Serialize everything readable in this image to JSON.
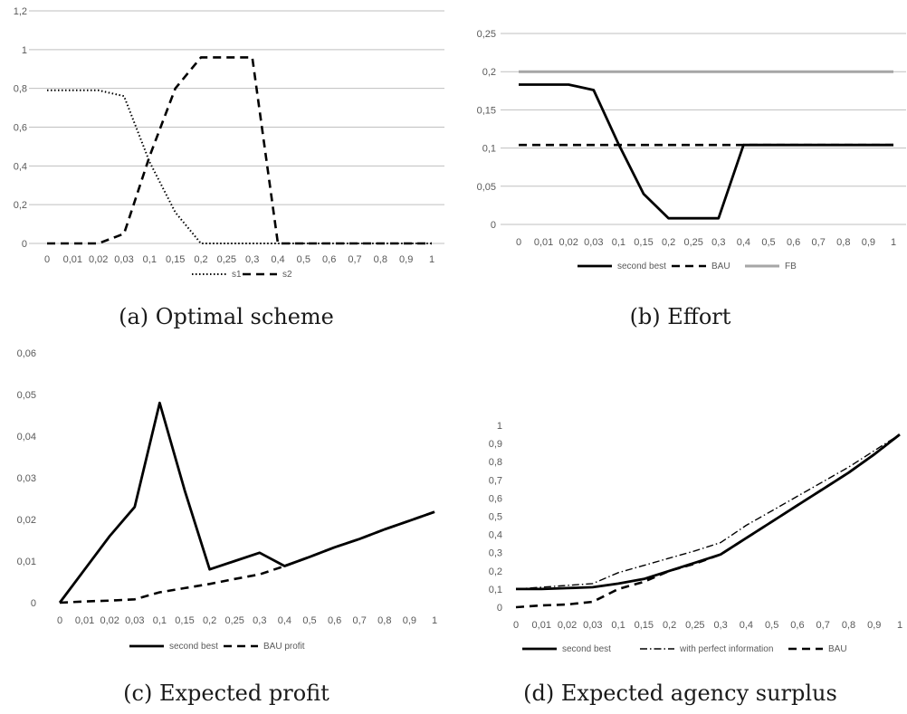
{
  "captions": {
    "a": "(a) Optimal scheme",
    "b": "(b) Effort",
    "c": "(c) Expected profit",
    "d": "(d) Expected agency surplus"
  },
  "chart_data": [
    {
      "id": "a",
      "type": "line",
      "title": "",
      "xlabel": "",
      "ylabel": "",
      "categories": [
        "0",
        "0,01",
        "0,02",
        "0,03",
        "0,1",
        "0,15",
        "0,2",
        "0,25",
        "0,3",
        "0,4",
        "0,5",
        "0,6",
        "0,7",
        "0,8",
        "0,9",
        "1"
      ],
      "yticks": [
        "0",
        "0,2",
        "0,4",
        "0,6",
        "0,8",
        "1",
        "1,2"
      ],
      "ylim": [
        0,
        1.2
      ],
      "grid": true,
      "legend": "bottom",
      "series": [
        {
          "name": "s1",
          "style": "dotted",
          "color": "#000000",
          "values": [
            0.79,
            0.79,
            0.79,
            0.76,
            0.42,
            0.16,
            0,
            0,
            0,
            0,
            0,
            0,
            0,
            0,
            0,
            0
          ]
        },
        {
          "name": "s2",
          "style": "dashed",
          "color": "#000000",
          "values": [
            0,
            0,
            0,
            0.05,
            0.45,
            0.8,
            0.96,
            0.96,
            0.96,
            0,
            0,
            0,
            0,
            0,
            0,
            0
          ]
        }
      ]
    },
    {
      "id": "b",
      "type": "line",
      "title": "",
      "xlabel": "",
      "ylabel": "",
      "categories": [
        "0",
        "0,01",
        "0,02",
        "0,03",
        "0,1",
        "0,15",
        "0,2",
        "0,25",
        "0,3",
        "0,4",
        "0,5",
        "0,6",
        "0,7",
        "0,8",
        "0,9",
        "1"
      ],
      "yticks": [
        "0",
        "0,05",
        "0,1",
        "0,15",
        "0,2",
        "0,25"
      ],
      "ylim": [
        0,
        0.25
      ],
      "grid": true,
      "legend": "bottom",
      "series": [
        {
          "name": "second best",
          "style": "solid",
          "color": "#000000",
          "values": [
            0.183,
            0.183,
            0.183,
            0.176,
            0.105,
            0.04,
            0.008,
            0.008,
            0.008,
            0.104,
            0.104,
            0.104,
            0.104,
            0.104,
            0.104,
            0.104
          ]
        },
        {
          "name": "BAU",
          "style": "dashed",
          "color": "#000000",
          "values": [
            0.104,
            0.104,
            0.104,
            0.104,
            0.104,
            0.104,
            0.104,
            0.104,
            0.104,
            0.104,
            0.104,
            0.104,
            0.104,
            0.104,
            0.104,
            0.104
          ]
        },
        {
          "name": "FB",
          "style": "solid",
          "color": "#a6a6a6",
          "values": [
            0.2,
            0.2,
            0.2,
            0.2,
            0.2,
            0.2,
            0.2,
            0.2,
            0.2,
            0.2,
            0.2,
            0.2,
            0.2,
            0.2,
            0.2,
            0.2
          ]
        }
      ]
    },
    {
      "id": "c",
      "type": "line",
      "title": "",
      "xlabel": "",
      "ylabel": "",
      "categories": [
        "0",
        "0,01",
        "0,02",
        "0,03",
        "0,1",
        "0,15",
        "0,2",
        "0,25",
        "0,3",
        "0,4",
        "0,5",
        "0,6",
        "0,7",
        "0,8",
        "0,9",
        "1"
      ],
      "yticks": [
        "0",
        "0,01",
        "0,02",
        "0,03",
        "0,04",
        "0,05",
        "0,06"
      ],
      "ylim": [
        0,
        0.06
      ],
      "grid": false,
      "legend": "bottom",
      "series": [
        {
          "name": "second best",
          "style": "solid",
          "color": "#000000",
          "values": [
            0,
            0.008,
            0.016,
            0.023,
            0.048,
            0.027,
            0.008,
            0.01,
            0.012,
            0.0088,
            0.011,
            0.0133,
            0.0153,
            0.0176,
            0.0197,
            0.0218
          ]
        },
        {
          "name": "BAU profit",
          "style": "dashed",
          "color": "#000000",
          "values": [
            0,
            0.0003,
            0.0005,
            0.0008,
            0.0025,
            0.0035,
            0.0045,
            0.0057,
            0.0068,
            0.0088,
            0.011,
            0.0133,
            0.0153,
            0.0176,
            0.0197,
            0.0218
          ]
        }
      ]
    },
    {
      "id": "d",
      "type": "line",
      "title": "",
      "xlabel": "",
      "ylabel": "",
      "categories": [
        "0",
        "0,01",
        "0,02",
        "0,03",
        "0,1",
        "0,15",
        "0,2",
        "0,25",
        "0,3",
        "0,4",
        "0,5",
        "0,6",
        "0,7",
        "0,8",
        "0,9",
        "1"
      ],
      "yticks": [
        "0",
        "0,1",
        "0,2",
        "0,3",
        "0,4",
        "0,5",
        "0,6",
        "0,7",
        "0,8",
        "0,9",
        "1"
      ],
      "ylim": [
        0,
        1
      ],
      "grid": false,
      "legend": "bottom",
      "series": [
        {
          "name": "second best",
          "style": "solid",
          "color": "#000000",
          "values": [
            0.1,
            0.1,
            0.105,
            0.11,
            0.13,
            0.155,
            0.2,
            0.245,
            0.29,
            0.38,
            0.47,
            0.56,
            0.65,
            0.74,
            0.84,
            0.95
          ]
        },
        {
          "name": "with perfect information",
          "style": "dashdot",
          "color": "#000000",
          "values": [
            0.1,
            0.11,
            0.12,
            0.13,
            0.19,
            0.23,
            0.27,
            0.31,
            0.355,
            0.45,
            0.53,
            0.61,
            0.69,
            0.77,
            0.86,
            0.95
          ]
        },
        {
          "name": "BAU",
          "style": "dashed",
          "color": "#000000",
          "values": [
            0,
            0.01,
            0.015,
            0.03,
            0.1,
            0.14,
            0.2,
            0.24,
            0.29,
            0.38,
            0.47,
            0.56,
            0.65,
            0.74,
            0.84,
            0.95
          ]
        }
      ]
    }
  ]
}
